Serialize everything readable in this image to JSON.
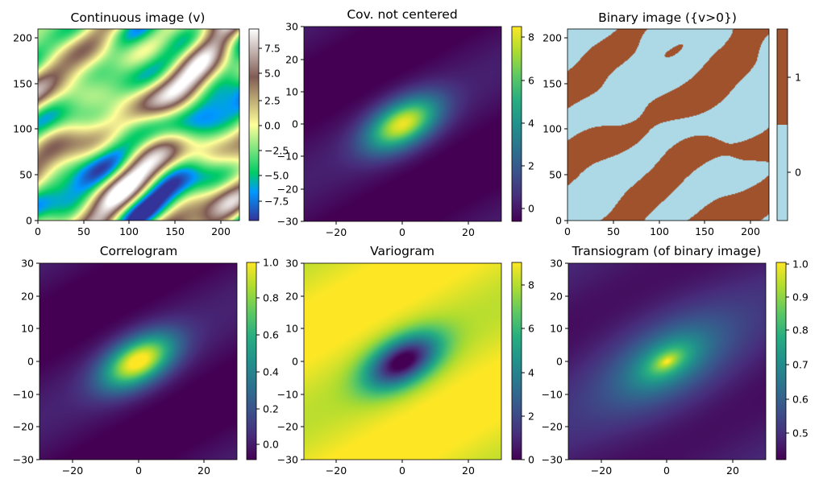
{
  "chart_data": [
    {
      "type": "heatmap",
      "title": "Continuous image (v)",
      "colormap": "terrain",
      "x_ticks": [
        0,
        50,
        100,
        150,
        200
      ],
      "y_ticks": [
        0,
        50,
        100,
        150,
        200
      ],
      "xlim": [
        0,
        220
      ],
      "ylim": [
        0,
        210
      ],
      "colorbar": {
        "ticks": [
          7.5,
          5.0,
          2.5,
          0.0,
          -2.5,
          -5.0,
          -7.5
        ],
        "tick_labels": [
          "7.5",
          "5.0",
          "2.5",
          "0.0",
          "−2.5",
          "−5.0",
          "−7.5"
        ],
        "range": [
          -9,
          10
        ]
      }
    },
    {
      "type": "heatmap",
      "title": "Cov. not centered",
      "colormap": "viridis",
      "x_ticks": [
        -20,
        0,
        20
      ],
      "x_tick_labels": [
        "−20",
        "0",
        "20"
      ],
      "y_ticks": [
        30,
        20,
        10,
        0,
        -10,
        -20,
        -30
      ],
      "y_tick_labels": [
        "30",
        "20",
        "10",
        "0",
        "−10",
        "−20",
        "−30"
      ],
      "xlim": [
        -30,
        30
      ],
      "ylim": [
        -30,
        30
      ],
      "colorbar": {
        "ticks": [
          8,
          6,
          4,
          2,
          0
        ],
        "tick_labels": [
          "8",
          "6",
          "4",
          "2",
          "0"
        ],
        "range": [
          -0.8,
          8.5
        ]
      }
    },
    {
      "type": "heatmap",
      "title": "Binary image ({v>0})",
      "colormap": [
        "#add8e6",
        "#a0522d"
      ],
      "x_ticks": [
        0,
        50,
        100,
        150,
        200
      ],
      "y_ticks": [
        0,
        50,
        100,
        150,
        200
      ],
      "xlim": [
        0,
        220
      ],
      "ylim": [
        0,
        210
      ],
      "colorbar": {
        "ticks": [
          1,
          0
        ],
        "tick_labels": [
          "1",
          "0"
        ],
        "categories": [
          0,
          1
        ]
      }
    },
    {
      "type": "heatmap",
      "title": "Correlogram",
      "colormap": "viridis",
      "x_ticks": [
        -20,
        0,
        20
      ],
      "x_tick_labels": [
        "−20",
        "0",
        "20"
      ],
      "y_ticks": [
        30,
        20,
        10,
        0,
        -10,
        -20,
        -30
      ],
      "y_tick_labels": [
        "30",
        "20",
        "10",
        "0",
        "−10",
        "−20",
        "−30"
      ],
      "xlim": [
        -30,
        30
      ],
      "ylim": [
        -30,
        30
      ],
      "colorbar": {
        "ticks": [
          1.0,
          0.8,
          0.6,
          0.4,
          0.2,
          0.0
        ],
        "tick_labels": [
          "1.0",
          "0.8",
          "0.6",
          "0.4",
          "0.2",
          "0.0"
        ],
        "range": [
          -0.1,
          1.0
        ]
      }
    },
    {
      "type": "heatmap",
      "title": "Variogram",
      "colormap": "viridis",
      "x_ticks": [
        -20,
        0,
        20
      ],
      "x_tick_labels": [
        "−20",
        "0",
        "20"
      ],
      "y_ticks": [
        30,
        20,
        10,
        0,
        -10,
        -20,
        -30
      ],
      "y_tick_labels": [
        "30",
        "20",
        "10",
        "0",
        "−10",
        "−20",
        "−30"
      ],
      "xlim": [
        -30,
        30
      ],
      "ylim": [
        -30,
        30
      ],
      "colorbar": {
        "ticks": [
          8,
          6,
          4,
          2,
          0
        ],
        "tick_labels": [
          "8",
          "6",
          "4",
          "2",
          "0"
        ],
        "range": [
          0,
          9.3
        ]
      }
    },
    {
      "type": "heatmap",
      "title": "Transiogram (of binary image)",
      "colormap": "viridis",
      "x_ticks": [
        -20,
        0,
        20
      ],
      "x_tick_labels": [
        "−20",
        "0",
        "20"
      ],
      "y_ticks": [
        30,
        20,
        10,
        0,
        -10,
        -20,
        -30
      ],
      "y_tick_labels": [
        "30",
        "20",
        "10",
        "0",
        "−10",
        "−20",
        "−30"
      ],
      "xlim": [
        -30,
        30
      ],
      "ylim": [
        -30,
        30
      ],
      "colorbar": {
        "ticks": [
          1.0,
          0.9,
          0.8,
          0.7,
          0.6,
          0.5
        ],
        "tick_labels": [
          "1.0",
          "0.9",
          "0.8",
          "0.7",
          "0.6",
          "0.5"
        ],
        "range": [
          0.43,
          1.0
        ]
      }
    }
  ]
}
